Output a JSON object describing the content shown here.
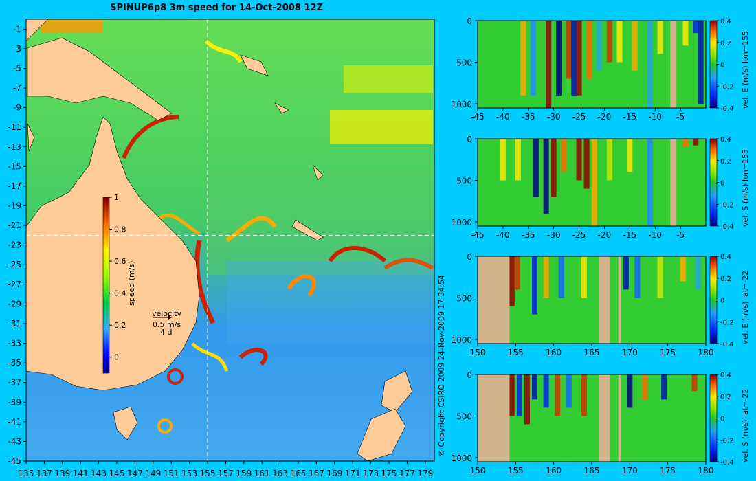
{
  "title": "SPINUP6p8 3m speed for 14-Oct-2008 12Z",
  "copyright": "© Copyright CSIRO 2009  24-Nov-2009 17:34:54",
  "colors": {
    "background": "#00ccff",
    "land": "#ffcc99",
    "section_land": "#d2b48c"
  },
  "map": {
    "x_ticks": [
      "135",
      "137",
      "139",
      "141",
      "143",
      "145",
      "147",
      "149",
      "151",
      "153",
      "155",
      "157",
      "159",
      "161",
      "163",
      "165",
      "167",
      "169",
      "171",
      "173",
      "175",
      "177",
      "179"
    ],
    "y_ticks": [
      "-1",
      "-3",
      "-5",
      "-7",
      "-9",
      "-11",
      "-13",
      "-15",
      "-17",
      "-19",
      "-21",
      "-23",
      "-25",
      "-27",
      "-29",
      "-31",
      "-33",
      "-35",
      "-37",
      "-39",
      "-41",
      "-43",
      "-45"
    ],
    "xlim": [
      135,
      180
    ],
    "ylim": [
      -45,
      0
    ],
    "crosshair": {
      "lon": 155,
      "lat": -22
    },
    "colorbar": {
      "label": "speed (m/s)",
      "ticks": [
        "1",
        "0.8",
        "0.6",
        "0.4",
        "0.2",
        "0"
      ],
      "range": [
        -0.1,
        1
      ]
    },
    "velocity_key": {
      "line1": "velocity",
      "line2": "0.5 m/s",
      "line3": "4 d"
    }
  },
  "chart_data": [
    {
      "type": "heatmap",
      "title": "",
      "xlabel": "",
      "ylabel": "",
      "x_ticks": [
        "-45",
        "-40",
        "-35",
        "-30",
        "-25",
        "-20",
        "-15",
        "-10",
        "-5"
      ],
      "y_ticks": [
        "0",
        "500",
        "1000"
      ],
      "xlim": [
        -45,
        0
      ],
      "ylim": [
        1050,
        0
      ],
      "colorbar": {
        "label": "vel. E (m/s) lon=155",
        "ticks": [
          "0.4",
          "0.2",
          "0",
          "-0.2",
          "-0.4"
        ],
        "range": [
          -0.4,
          0.4
        ]
      },
      "columns": [
        {
          "x": -36,
          "v": 0.25,
          "d": 900
        },
        {
          "x": -34,
          "v": -0.15,
          "d": 900
        },
        {
          "x": -31,
          "v": 0.45,
          "d": 1050
        },
        {
          "x": -29,
          "v": -0.4,
          "d": 900
        },
        {
          "x": -27,
          "v": 0.35,
          "d": 700
        },
        {
          "x": -26,
          "v": -0.35,
          "d": 900
        },
        {
          "x": -25,
          "v": 0.45,
          "d": 900
        },
        {
          "x": -23,
          "v": 0.3,
          "d": 700
        },
        {
          "x": -21,
          "v": -0.1,
          "d": 600
        },
        {
          "x": -19,
          "v": 0.35,
          "d": 500
        },
        {
          "x": -17,
          "v": 0.2,
          "d": 500
        },
        {
          "x": -14,
          "v": 0.25,
          "d": 600
        },
        {
          "x": -11,
          "v": -0.1,
          "d": 1050
        },
        {
          "x": -9,
          "v": 0.2,
          "d": 400
        },
        {
          "x": -4,
          "v": 0.2,
          "d": 300
        },
        {
          "x": -2,
          "v": -0.3,
          "d": 150
        },
        {
          "x": -1,
          "v": -0.35,
          "d": 1000
        }
      ],
      "land": [
        [
          -7,
          -5.8
        ]
      ]
    },
    {
      "type": "heatmap",
      "title": "",
      "xlabel": "",
      "ylabel": "",
      "x_ticks": [
        "-45",
        "-40",
        "-35",
        "-30",
        "-25",
        "-20",
        "-15",
        "-10",
        "-5"
      ],
      "y_ticks": [
        "0",
        "500",
        "1000"
      ],
      "xlim": [
        -45,
        0
      ],
      "ylim": [
        1050,
        0
      ],
      "colorbar": {
        "label": "vel. S (m/s) lon=155",
        "ticks": [
          "0.4",
          "0.2",
          "0",
          "-0.2",
          "-0.4"
        ],
        "range": [
          -0.4,
          0.4
        ]
      },
      "columns": [
        {
          "x": -40,
          "v": 0.2,
          "d": 500
        },
        {
          "x": -37,
          "v": 0.2,
          "d": 500
        },
        {
          "x": -33.5,
          "v": -0.4,
          "d": 700
        },
        {
          "x": -31.5,
          "v": -0.4,
          "d": 900
        },
        {
          "x": -30,
          "v": 0.45,
          "d": 700
        },
        {
          "x": -28,
          "v": 0.3,
          "d": 400
        },
        {
          "x": -25,
          "v": 0.45,
          "d": 500
        },
        {
          "x": -23.5,
          "v": 0.4,
          "d": 600
        },
        {
          "x": -22,
          "v": 0.25,
          "d": 1050
        },
        {
          "x": -19,
          "v": 0.15,
          "d": 500
        },
        {
          "x": -15,
          "v": 0.2,
          "d": 400
        },
        {
          "x": -11,
          "v": -0.15,
          "d": 1050
        },
        {
          "x": -4,
          "v": 0.3,
          "d": 100
        },
        {
          "x": -2,
          "v": 0.4,
          "d": 80
        }
      ],
      "land": [
        [
          -7,
          -5.8
        ]
      ]
    },
    {
      "type": "heatmap",
      "title": "",
      "xlabel": "",
      "ylabel": "",
      "x_ticks": [
        "150",
        "155",
        "160",
        "165",
        "170",
        "175",
        "180"
      ],
      "y_ticks": [
        "0",
        "500",
        "1000"
      ],
      "xlim": [
        150,
        180
      ],
      "ylim": [
        1050,
        0
      ],
      "colorbar": {
        "label": "vel. E (m/s) lat=-22",
        "ticks": [
          "0.4",
          "0.2",
          "0",
          "-0.2",
          "-0.4"
        ],
        "range": [
          -0.4,
          0.4
        ]
      },
      "columns": [
        {
          "x": 154.5,
          "v": 0.45,
          "d": 600
        },
        {
          "x": 155.2,
          "v": 0.35,
          "d": 400
        },
        {
          "x": 157.5,
          "v": -0.3,
          "d": 700
        },
        {
          "x": 159,
          "v": 0.25,
          "d": 500
        },
        {
          "x": 161,
          "v": -0.2,
          "d": 500
        },
        {
          "x": 164,
          "v": 0.2,
          "d": 500
        },
        {
          "x": 169.5,
          "v": -0.35,
          "d": 400
        },
        {
          "x": 171,
          "v": -0.2,
          "d": 500
        },
        {
          "x": 174,
          "v": 0.15,
          "d": 500
        },
        {
          "x": 177,
          "v": 0.25,
          "d": 300
        },
        {
          "x": 179,
          "v": -0.1,
          "d": 400
        }
      ],
      "land": [
        [
          150,
          154.2
        ],
        [
          166,
          167.4
        ],
        [
          168.5,
          168.8
        ]
      ]
    },
    {
      "type": "heatmap",
      "title": "",
      "xlabel": "",
      "ylabel": "",
      "x_ticks": [
        "150",
        "155",
        "160",
        "165",
        "170",
        "175",
        "180"
      ],
      "y_ticks": [
        "0",
        "500",
        "1000"
      ],
      "xlim": [
        150,
        180
      ],
      "ylim": [
        1050,
        0
      ],
      "colorbar": {
        "label": "vel. S (m/s) lat=-22",
        "ticks": [
          "0.4",
          "0.2",
          "0",
          "-0.2",
          "-0.4"
        ],
        "range": [
          -0.4,
          0.4
        ]
      },
      "columns": [
        {
          "x": 154.5,
          "v": 0.45,
          "d": 500
        },
        {
          "x": 155.5,
          "v": -0.3,
          "d": 500
        },
        {
          "x": 156.5,
          "v": 0.4,
          "d": 600
        },
        {
          "x": 157.5,
          "v": -0.35,
          "d": 300
        },
        {
          "x": 159,
          "v": -0.3,
          "d": 400
        },
        {
          "x": 160.5,
          "v": 0.35,
          "d": 500
        },
        {
          "x": 162,
          "v": -0.2,
          "d": 400
        },
        {
          "x": 164,
          "v": 0.35,
          "d": 500
        },
        {
          "x": 170,
          "v": -0.4,
          "d": 400
        },
        {
          "x": 172,
          "v": 0.3,
          "d": 300
        },
        {
          "x": 174.5,
          "v": -0.35,
          "d": 300
        },
        {
          "x": 178.5,
          "v": 0.35,
          "d": 200
        }
      ],
      "land": [
        [
          150,
          154.2
        ],
        [
          166,
          167.4
        ],
        [
          168.5,
          168.8
        ]
      ]
    }
  ]
}
